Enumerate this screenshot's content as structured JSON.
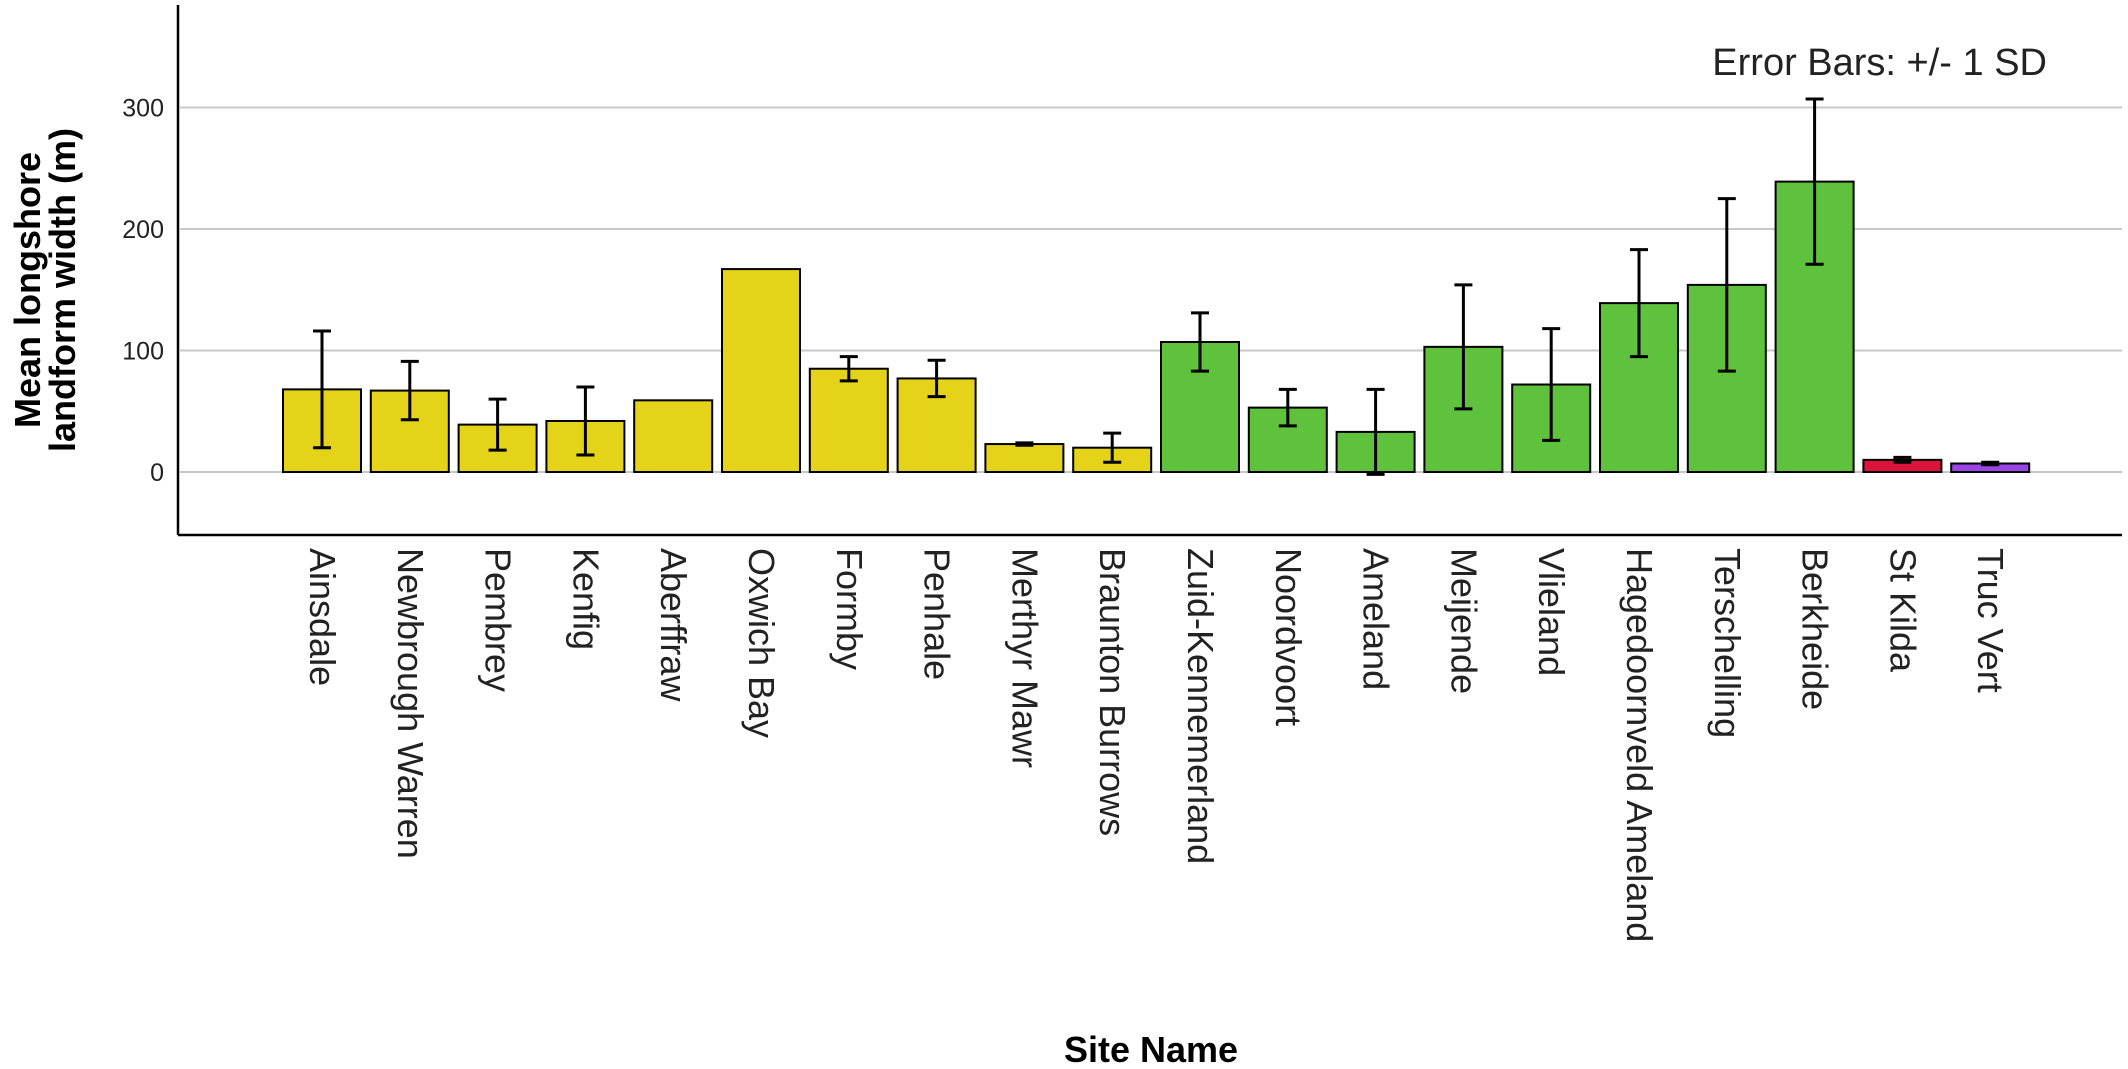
{
  "chart_data": {
    "type": "bar",
    "xlabel": "Site Name",
    "ylabel_lines": [
      "Mean longshore",
      "landform width (m)"
    ],
    "annotation": "Error Bars: +/- 1 SD",
    "ylim": [
      -50,
      390
    ],
    "yticks": [
      0,
      100,
      200,
      300
    ],
    "grid": true,
    "categories": [
      "Ainsdale",
      "Newbrough Warren",
      "Pembrey",
      "Kenfig",
      "Aberffraw",
      "Oxwich Bay",
      "Formby",
      "Penhale",
      "Merthyr Mawr",
      "Braunton Burrows",
      "Zuid-Kennemerland",
      "Noordvoort",
      "Ameland",
      "Meijende",
      "Vlieland",
      "Hagedoornveld Ameland",
      "Terschelling",
      "Berkheide",
      "St Kilda",
      "Truc Vert"
    ],
    "values": [
      68,
      67,
      39,
      42,
      59,
      167,
      85,
      77,
      23,
      20,
      107,
      53,
      33,
      103,
      72,
      139,
      154,
      239,
      10,
      7
    ],
    "error_sd": [
      48,
      24,
      21,
      28,
      null,
      null,
      10,
      15,
      1,
      12,
      24,
      15,
      35,
      51,
      46,
      44,
      71,
      68,
      2,
      1
    ],
    "bar_colors": [
      "#e5d31a",
      "#e5d31a",
      "#e5d31a",
      "#e5d31a",
      "#e5d31a",
      "#e5d31a",
      "#e5d31a",
      "#e5d31a",
      "#e5d31a",
      "#e5d31a",
      "#5ec23c",
      "#5ec23c",
      "#5ec23c",
      "#5ec23c",
      "#5ec23c",
      "#5ec23c",
      "#5ec23c",
      "#5ec23c",
      "#dc143c",
      "#9b45e6"
    ]
  }
}
